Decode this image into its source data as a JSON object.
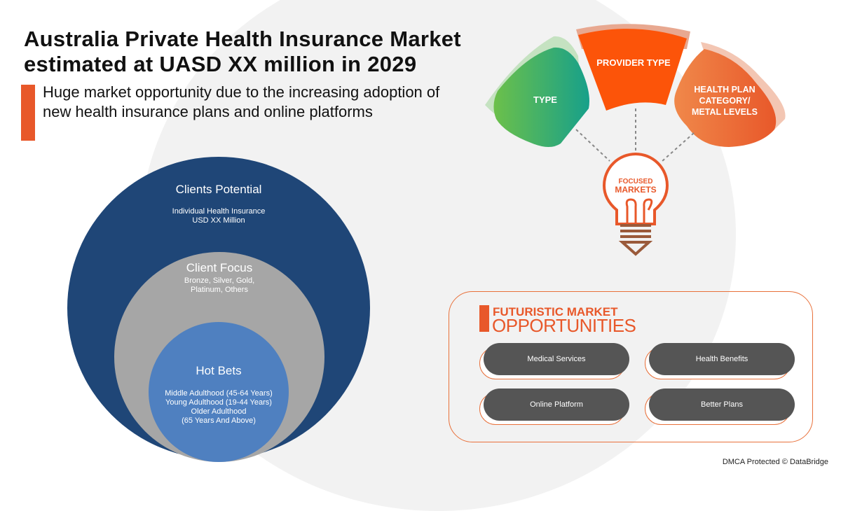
{
  "header": {
    "title_line1": "Australia Private Health Insurance Market",
    "title_line2": "estimated at UASD XX  million in 2029",
    "subtitle": "Huge market opportunity due to the increasing adoption of new health insurance plans and online platforms"
  },
  "circles": {
    "outer": {
      "title": "Clients Potential",
      "lines": [
        "Individual Health Insurance",
        "USD XX Million"
      ]
    },
    "middle": {
      "title": "Client Focus",
      "lines": [
        "Bronze, Silver, Gold,",
        "Platinum, Others"
      ]
    },
    "inner": {
      "title": "Hot Bets",
      "lines": [
        "Middle Adulthood (45-64 Years)",
        "Young Adulthood (19-44 Years)",
        "Older Adulthood",
        "(65 Years And Above)"
      ]
    }
  },
  "segments": {
    "left": "TYPE",
    "center": "PROVIDER TYPE",
    "right_lines": [
      "HEALTH PLAN",
      "CATEGORY/",
      "METAL LEVELS"
    ],
    "bulb_line1": "FOCUSED",
    "bulb_line2": "MARKETS"
  },
  "opportunities": {
    "title_line1": "FUTURISTIC MARKET",
    "title_line2": "OPPORTUNITIES",
    "items": [
      "Medical Services",
      "Health Benefits",
      "Online Platform",
      "Better Plans"
    ]
  },
  "footer": "DMCA Protected © DataBridge",
  "colors": {
    "accent": "#e8582a",
    "navy": "#1f4677",
    "gray": "#a6a6a6",
    "blue": "#4f80c0",
    "green": "#3aaa6a",
    "pill": "#555555"
  }
}
